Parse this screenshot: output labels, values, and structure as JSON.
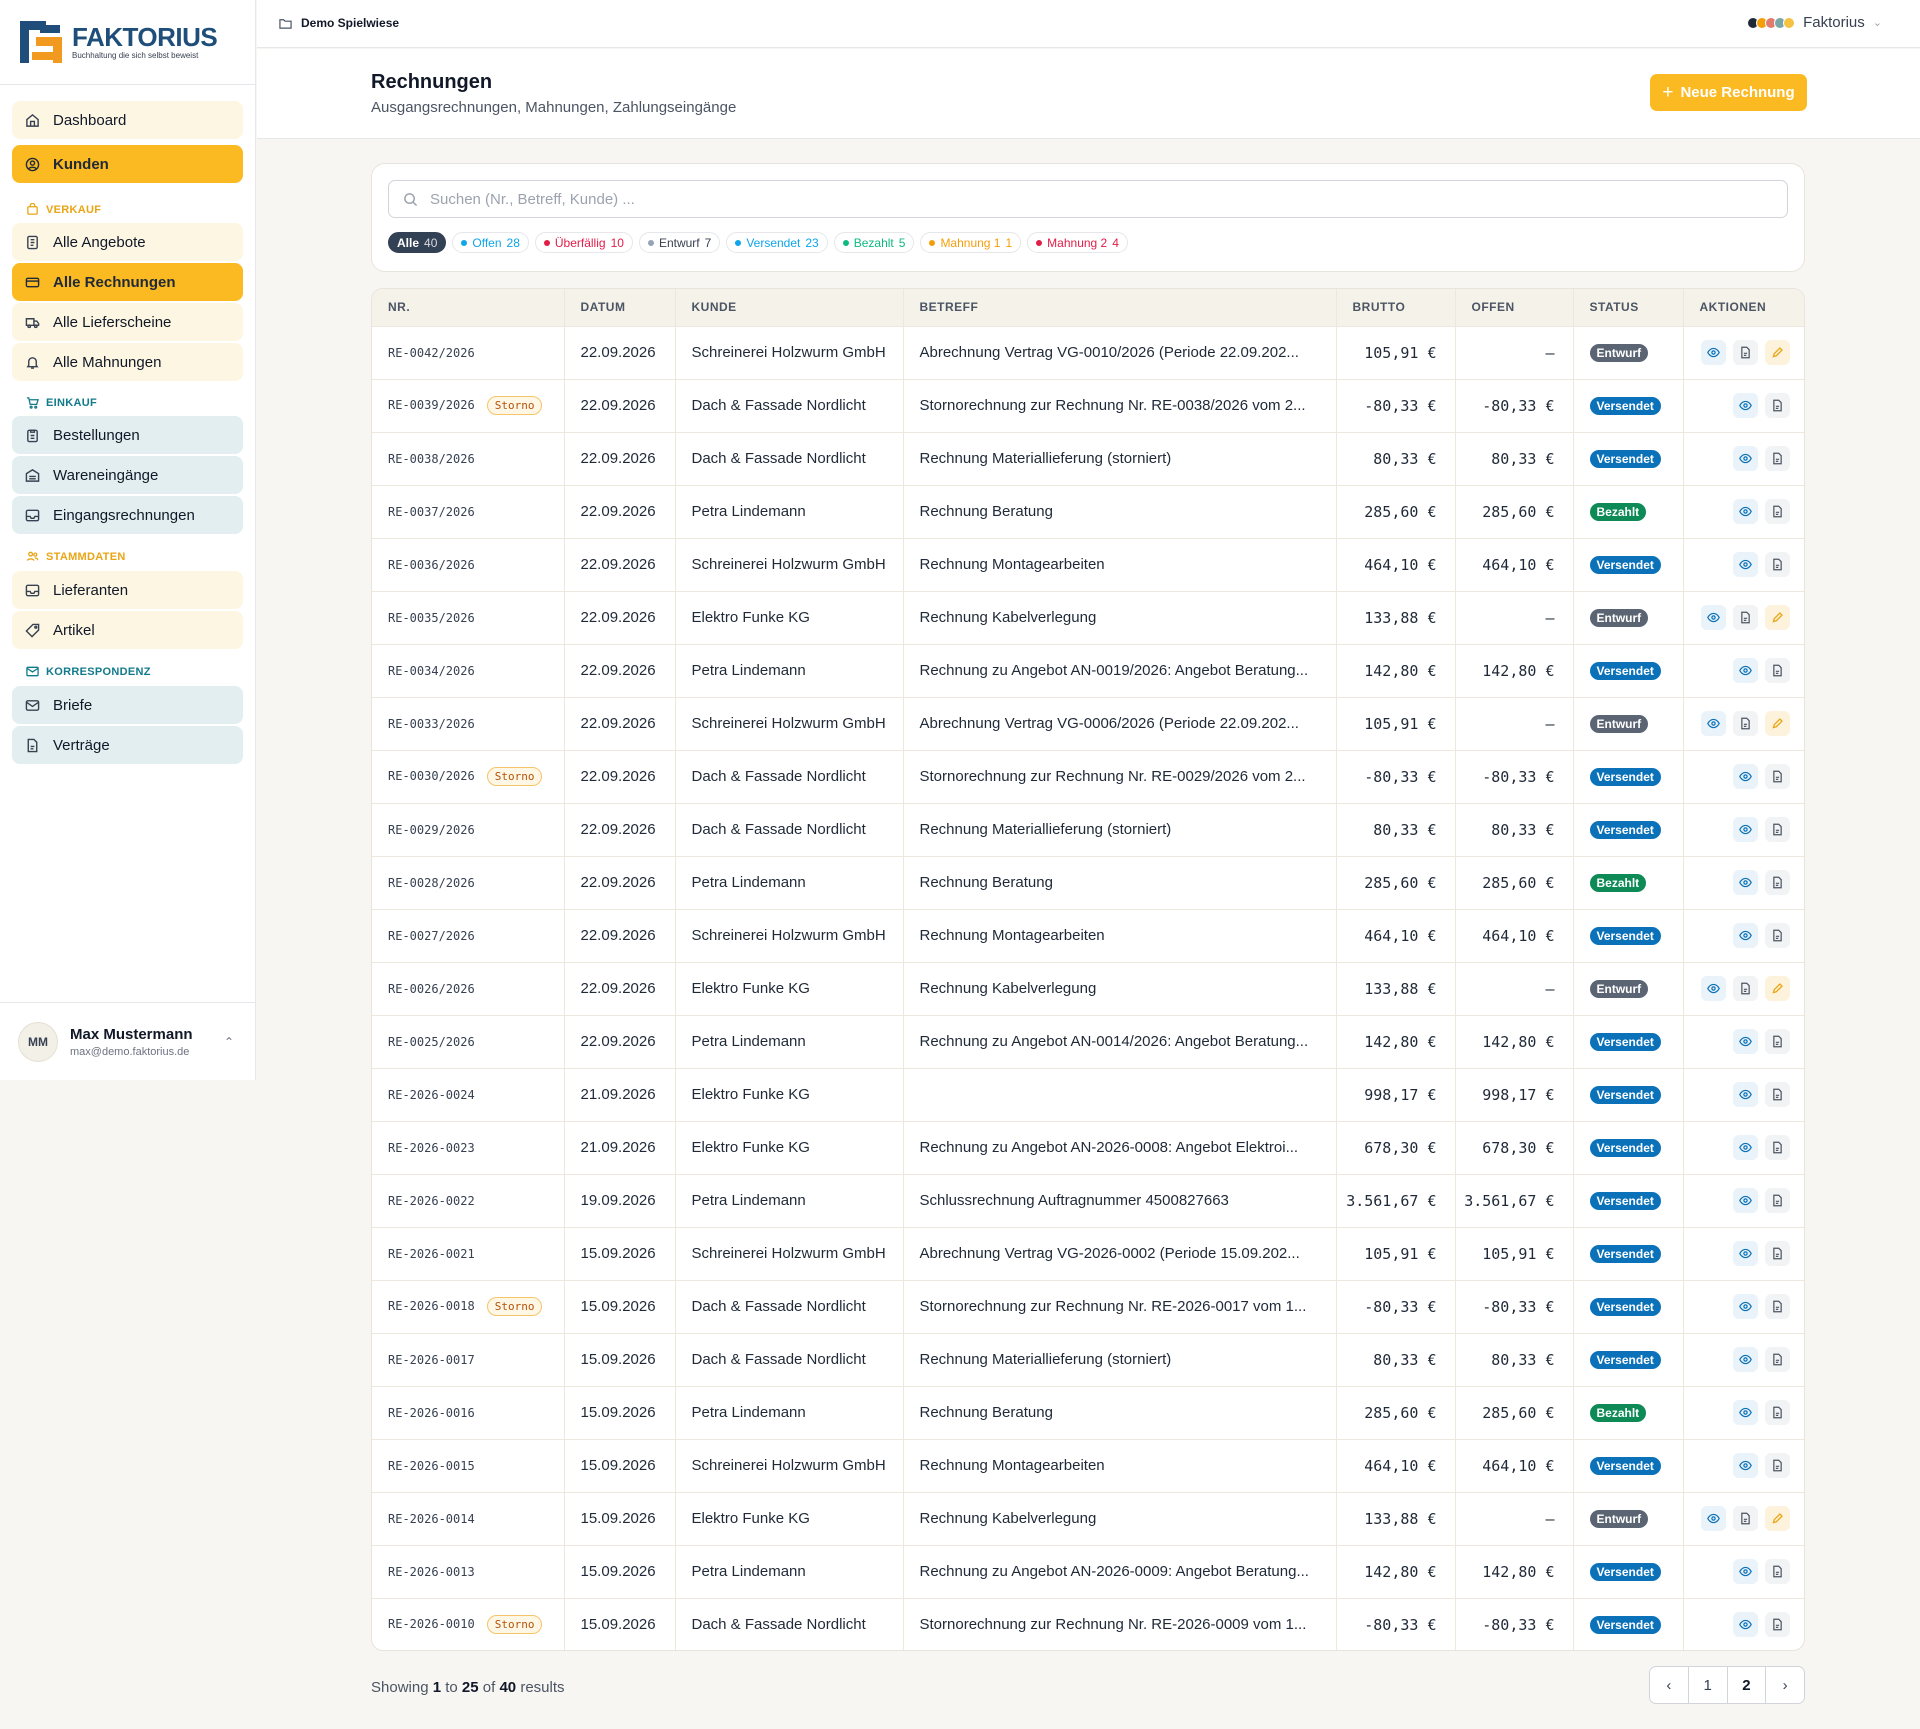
{
  "brand": {
    "name": "FAKTORIUS",
    "tagline": "Buchhaltung die sich selbst beweist"
  },
  "topbar": {
    "breadcrumb": "Demo Spielwiese",
    "org_name": "Faktorius"
  },
  "nav": {
    "dashboard": "Dashboard",
    "kunden": "Kunden",
    "verkauf_label": "VERKAUF",
    "alle_angebote": "Alle Angebote",
    "alle_rechnungen": "Alle Rechnungen",
    "alle_lieferscheine": "Alle Lieferscheine",
    "alle_mahnungen": "Alle Mahnungen",
    "einkauf_label": "EINKAUF",
    "bestellungen": "Bestellungen",
    "wareneingaenge": "Wareneingänge",
    "eingangsrechnungen": "Eingangsrechnungen",
    "stammdaten_label": "STAMMDATEN",
    "lieferanten": "Lieferanten",
    "artikel": "Artikel",
    "korrespondenz_label": "KORRESPONDENZ",
    "briefe": "Briefe",
    "vertraege": "Verträge"
  },
  "user": {
    "initials": "MM",
    "name": "Max Mustermann",
    "email": "max@demo.faktorius.de"
  },
  "page": {
    "title": "Rechnungen",
    "subtitle": "Ausgangsrechnungen, Mahnungen, Zahlungseingänge",
    "new_button": "Neue Rechnung"
  },
  "search": {
    "placeholder": "Suchen (Nr., Betreff, Kunde) ..."
  },
  "filters": [
    {
      "label": "Alle",
      "count": "40",
      "color": "#334155",
      "active": true
    },
    {
      "label": "Offen",
      "count": "28",
      "color": "#0ea5e9"
    },
    {
      "label": "Überfällig",
      "count": "10",
      "color": "#e11d48"
    },
    {
      "label": "Entwurf",
      "count": "7",
      "color": "#94a3b8"
    },
    {
      "label": "Versendet",
      "count": "23",
      "color": "#0ea5e9"
    },
    {
      "label": "Bezahlt",
      "count": "5",
      "color": "#10b981"
    },
    {
      "label": "Mahnung 1",
      "count": "1",
      "color": "#f59e0b"
    },
    {
      "label": "Mahnung 2",
      "count": "4",
      "color": "#e11d48"
    }
  ],
  "table": {
    "columns": [
      "NR.",
      "DATUM",
      "KUNDE",
      "BETREFF",
      "BRUTTO",
      "OFFEN",
      "STATUS",
      "AKTIONEN"
    ],
    "storno_label": "Storno",
    "rows": [
      {
        "nr": "RE-0042/2026",
        "storno": false,
        "datum": "22.09.2026",
        "kunde": "Schreinerei Holzwurm GmbH",
        "betreff": "Abrechnung Vertrag VG-0010/2026 (Periode 22.09.202...",
        "brutto": "105,91 €",
        "offen": "–",
        "status": "Entwurf"
      },
      {
        "nr": "RE-0039/2026",
        "storno": true,
        "datum": "22.09.2026",
        "kunde": "Dach & Fassade Nordlicht",
        "betreff": "Stornorechnung zur Rechnung Nr. RE-0038/2026 vom 2...",
        "brutto": "-80,33 €",
        "offen": "-80,33 €",
        "status": "Versendet"
      },
      {
        "nr": "RE-0038/2026",
        "storno": false,
        "datum": "22.09.2026",
        "kunde": "Dach & Fassade Nordlicht",
        "betreff": "Rechnung Materiallieferung (storniert)",
        "brutto": "80,33 €",
        "offen": "80,33 €",
        "status": "Versendet"
      },
      {
        "nr": "RE-0037/2026",
        "storno": false,
        "datum": "22.09.2026",
        "kunde": "Petra Lindemann",
        "betreff": "Rechnung Beratung",
        "brutto": "285,60 €",
        "offen": "285,60 €",
        "status": "Bezahlt"
      },
      {
        "nr": "RE-0036/2026",
        "storno": false,
        "datum": "22.09.2026",
        "kunde": "Schreinerei Holzwurm GmbH",
        "betreff": "Rechnung Montagearbeiten",
        "brutto": "464,10 €",
        "offen": "464,10 €",
        "status": "Versendet"
      },
      {
        "nr": "RE-0035/2026",
        "storno": false,
        "datum": "22.09.2026",
        "kunde": "Elektro Funke KG",
        "betreff": "Rechnung Kabelverlegung",
        "brutto": "133,88 €",
        "offen": "–",
        "status": "Entwurf"
      },
      {
        "nr": "RE-0034/2026",
        "storno": false,
        "datum": "22.09.2026",
        "kunde": "Petra Lindemann",
        "betreff": "Rechnung zu Angebot AN-0019/2026: Angebot Beratung...",
        "brutto": "142,80 €",
        "offen": "142,80 €",
        "status": "Versendet"
      },
      {
        "nr": "RE-0033/2026",
        "storno": false,
        "datum": "22.09.2026",
        "kunde": "Schreinerei Holzwurm GmbH",
        "betreff": "Abrechnung Vertrag VG-0006/2026 (Periode 22.09.202...",
        "brutto": "105,91 €",
        "offen": "–",
        "status": "Entwurf"
      },
      {
        "nr": "RE-0030/2026",
        "storno": true,
        "datum": "22.09.2026",
        "kunde": "Dach & Fassade Nordlicht",
        "betreff": "Stornorechnung zur Rechnung Nr. RE-0029/2026 vom 2...",
        "brutto": "-80,33 €",
        "offen": "-80,33 €",
        "status": "Versendet"
      },
      {
        "nr": "RE-0029/2026",
        "storno": false,
        "datum": "22.09.2026",
        "kunde": "Dach & Fassade Nordlicht",
        "betreff": "Rechnung Materiallieferung (storniert)",
        "brutto": "80,33 €",
        "offen": "80,33 €",
        "status": "Versendet"
      },
      {
        "nr": "RE-0028/2026",
        "storno": false,
        "datum": "22.09.2026",
        "kunde": "Petra Lindemann",
        "betreff": "Rechnung Beratung",
        "brutto": "285,60 €",
        "offen": "285,60 €",
        "status": "Bezahlt"
      },
      {
        "nr": "RE-0027/2026",
        "storno": false,
        "datum": "22.09.2026",
        "kunde": "Schreinerei Holzwurm GmbH",
        "betreff": "Rechnung Montagearbeiten",
        "brutto": "464,10 €",
        "offen": "464,10 €",
        "status": "Versendet"
      },
      {
        "nr": "RE-0026/2026",
        "storno": false,
        "datum": "22.09.2026",
        "kunde": "Elektro Funke KG",
        "betreff": "Rechnung Kabelverlegung",
        "brutto": "133,88 €",
        "offen": "–",
        "status": "Entwurf"
      },
      {
        "nr": "RE-0025/2026",
        "storno": false,
        "datum": "22.09.2026",
        "kunde": "Petra Lindemann",
        "betreff": "Rechnung zu Angebot AN-0014/2026: Angebot Beratung...",
        "brutto": "142,80 €",
        "offen": "142,80 €",
        "status": "Versendet"
      },
      {
        "nr": "RE-2026-0024",
        "storno": false,
        "datum": "21.09.2026",
        "kunde": "Elektro Funke KG",
        "betreff": "",
        "brutto": "998,17 €",
        "offen": "998,17 €",
        "status": "Versendet"
      },
      {
        "nr": "RE-2026-0023",
        "storno": false,
        "datum": "21.09.2026",
        "kunde": "Elektro Funke KG",
        "betreff": "Rechnung zu Angebot AN-2026-0008: Angebot Elektroi...",
        "brutto": "678,30 €",
        "offen": "678,30 €",
        "status": "Versendet"
      },
      {
        "nr": "RE-2026-0022",
        "storno": false,
        "datum": "19.09.2026",
        "kunde": "Petra Lindemann",
        "betreff": "Schlussrechnung Auftragnummer 4500827663",
        "brutto": "3.561,67 €",
        "offen": "3.561,67 €",
        "status": "Versendet"
      },
      {
        "nr": "RE-2026-0021",
        "storno": false,
        "datum": "15.09.2026",
        "kunde": "Schreinerei Holzwurm GmbH",
        "betreff": "Abrechnung Vertrag VG-2026-0002 (Periode 15.09.202...",
        "brutto": "105,91 €",
        "offen": "105,91 €",
        "status": "Versendet"
      },
      {
        "nr": "RE-2026-0018",
        "storno": true,
        "datum": "15.09.2026",
        "kunde": "Dach & Fassade Nordlicht",
        "betreff": "Stornorechnung zur Rechnung Nr. RE-2026-0017 vom 1...",
        "brutto": "-80,33 €",
        "offen": "-80,33 €",
        "status": "Versendet"
      },
      {
        "nr": "RE-2026-0017",
        "storno": false,
        "datum": "15.09.2026",
        "kunde": "Dach & Fassade Nordlicht",
        "betreff": "Rechnung Materiallieferung (storniert)",
        "brutto": "80,33 €",
        "offen": "80,33 €",
        "status": "Versendet"
      },
      {
        "nr": "RE-2026-0016",
        "storno": false,
        "datum": "15.09.2026",
        "kunde": "Petra Lindemann",
        "betreff": "Rechnung Beratung",
        "brutto": "285,60 €",
        "offen": "285,60 €",
        "status": "Bezahlt"
      },
      {
        "nr": "RE-2026-0015",
        "storno": false,
        "datum": "15.09.2026",
        "kunde": "Schreinerei Holzwurm GmbH",
        "betreff": "Rechnung Montagearbeiten",
        "brutto": "464,10 €",
        "offen": "464,10 €",
        "status": "Versendet"
      },
      {
        "nr": "RE-2026-0014",
        "storno": false,
        "datum": "15.09.2026",
        "kunde": "Elektro Funke KG",
        "betreff": "Rechnung Kabelverlegung",
        "brutto": "133,88 €",
        "offen": "–",
        "status": "Entwurf"
      },
      {
        "nr": "RE-2026-0013",
        "storno": false,
        "datum": "15.09.2026",
        "kunde": "Petra Lindemann",
        "betreff": "Rechnung zu Angebot AN-2026-0009: Angebot Beratung...",
        "brutto": "142,80 €",
        "offen": "142,80 €",
        "status": "Versendet"
      },
      {
        "nr": "RE-2026-0010",
        "storno": true,
        "datum": "15.09.2026",
        "kunde": "Dach & Fassade Nordlicht",
        "betreff": "Stornorechnung zur Rechnung Nr. RE-2026-0009 vom 1...",
        "brutto": "-80,33 €",
        "offen": "-80,33 €",
        "status": "Versendet"
      }
    ]
  },
  "status_colors": {
    "Entwurf": "#5b6472",
    "Versendet": "#0b72b9",
    "Bezahlt": "#0e8a57"
  },
  "pagination": {
    "showing_prefix": "Showing",
    "from": "1",
    "to_word": "to",
    "to": "25",
    "of_word": "of",
    "total": "40",
    "results_word": "results",
    "pages": [
      "1",
      "2"
    ]
  }
}
